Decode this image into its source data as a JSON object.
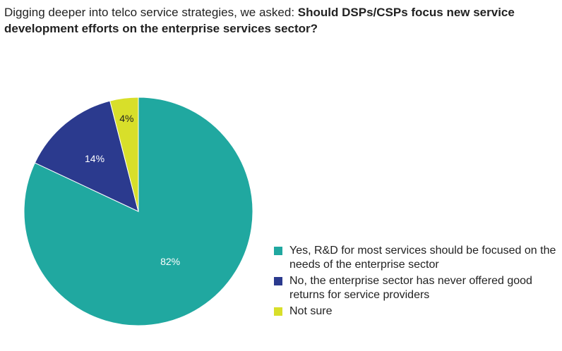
{
  "header": {
    "lead": "Digging deeper into telco service strategies, we asked:",
    "question": "Should DSPs/CSPs focus new service development efforts on the enterprise services sector?"
  },
  "chart_data": {
    "type": "pie",
    "title": "Should DSPs/CSPs focus new service development efforts on the enterprise services sector?",
    "slices": [
      {
        "label": "Yes, R&D for most services should be focused on the needs of the enterprise sector",
        "value": 82,
        "display": "82%",
        "color": "#20a8a0",
        "label_color": "#ffffff"
      },
      {
        "label": "No, the enterprise sector has never offered good returns for service providers",
        "value": 14,
        "display": "14%",
        "color": "#2b3a8e",
        "label_color": "#ffffff"
      },
      {
        "label": "Not sure",
        "value": 4,
        "display": "4%",
        "color": "#d8df2a",
        "label_color": "#222222"
      }
    ],
    "start": "12 o'clock",
    "direction": "clockwise",
    "legend": "bottom-right"
  }
}
